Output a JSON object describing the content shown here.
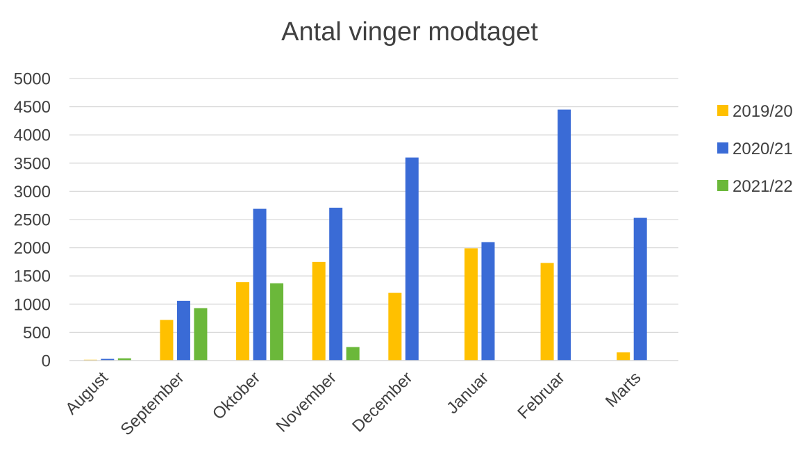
{
  "chart_data": {
    "type": "bar",
    "title": "Antal vinger modtaget",
    "xlabel": "",
    "ylabel": "",
    "categories": [
      "August",
      "September",
      "Oktober",
      "November",
      "December",
      "Januar",
      "Februar",
      "Marts"
    ],
    "series": [
      {
        "name": "2019/20",
        "color": "#FFC000",
        "values": [
          15,
          720,
          1390,
          1750,
          1200,
          1990,
          1730,
          145
        ]
      },
      {
        "name": "2020/21",
        "color": "#3A6BD6",
        "values": [
          30,
          1060,
          2690,
          2710,
          3600,
          2100,
          4450,
          2530
        ]
      },
      {
        "name": "2021/22",
        "color": "#6BB83A",
        "values": [
          40,
          930,
          1370,
          240,
          null,
          null,
          null,
          null
        ]
      }
    ],
    "ylim": [
      0,
      5000
    ],
    "yticks": [
      0,
      500,
      1000,
      1500,
      2000,
      2500,
      3000,
      3500,
      4000,
      4500,
      5000
    ],
    "grid": true,
    "legend_position": "right"
  }
}
